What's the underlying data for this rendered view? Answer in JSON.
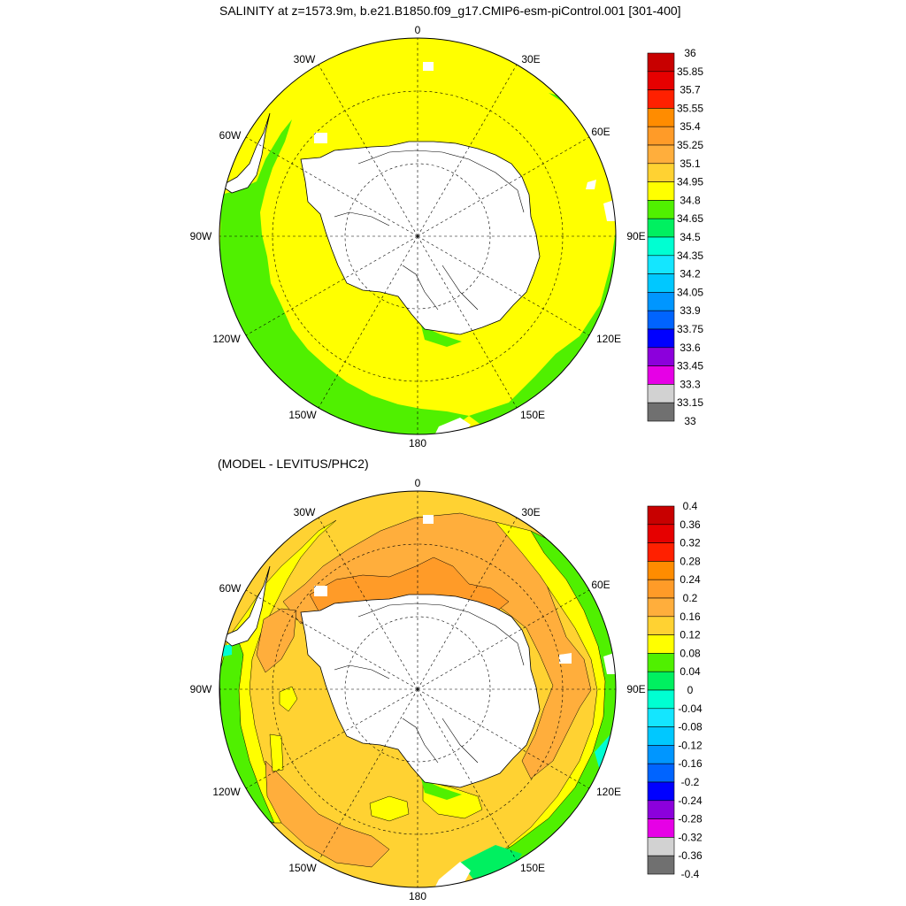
{
  "top_panel": {
    "title": "SALINITY at z=1573.9m, b.e21.B1850.f09_g17.CMIP6-esm-piControl.001 [301-400]",
    "lon_labels": [
      "0",
      "30E",
      "60E",
      "90E",
      "120E",
      "150E",
      "180",
      "150W",
      "120W",
      "90W",
      "60W",
      "30W"
    ],
    "colorbar": {
      "labels": [
        "36",
        "35.85",
        "35.7",
        "35.55",
        "35.4",
        "35.25",
        "35.1",
        "34.95",
        "34.8",
        "34.65",
        "34.5",
        "34.35",
        "34.2",
        "34.05",
        "33.9",
        "33.75",
        "33.6",
        "33.45",
        "33.3",
        "33.15",
        "33"
      ],
      "colors": [
        "#c80000",
        "#e60000",
        "#ff2000",
        "#ff8c00",
        "#ff9b28",
        "#ffae3c",
        "#ffd232",
        "#ffff00",
        "#50f000",
        "#00f060",
        "#00ffd2",
        "#14e6ff",
        "#00c8ff",
        "#0096ff",
        "#0064ff",
        "#0000ff",
        "#8c00dc",
        "#e600e6",
        "#d2d2d2",
        "#707070"
      ]
    }
  },
  "bottom_panel": {
    "title": "(MODEL - LEVITUS/PHC2)",
    "lon_labels": [
      "0",
      "30E",
      "60E",
      "90E",
      "120E",
      "150E",
      "180",
      "150W",
      "120W",
      "90W",
      "60W",
      "30W"
    ],
    "colorbar": {
      "labels": [
        "0.4",
        "0.36",
        "0.32",
        "0.28",
        "0.24",
        "0.2",
        "0.16",
        "0.12",
        "0.08",
        "0.04",
        "0",
        "-0.04",
        "-0.08",
        "-0.12",
        "-0.16",
        "-0.2",
        "-0.24",
        "-0.28",
        "-0.32",
        "-0.36",
        "-0.4"
      ],
      "colors": [
        "#c80000",
        "#e60000",
        "#ff2000",
        "#ff8c00",
        "#ff9b28",
        "#ffae3c",
        "#ffd232",
        "#ffff00",
        "#50f000",
        "#00f060",
        "#00ffd2",
        "#14e6ff",
        "#00c8ff",
        "#0096ff",
        "#0064ff",
        "#0000ff",
        "#8c00dc",
        "#e600e6",
        "#d2d2d2",
        "#707070"
      ]
    }
  }
}
